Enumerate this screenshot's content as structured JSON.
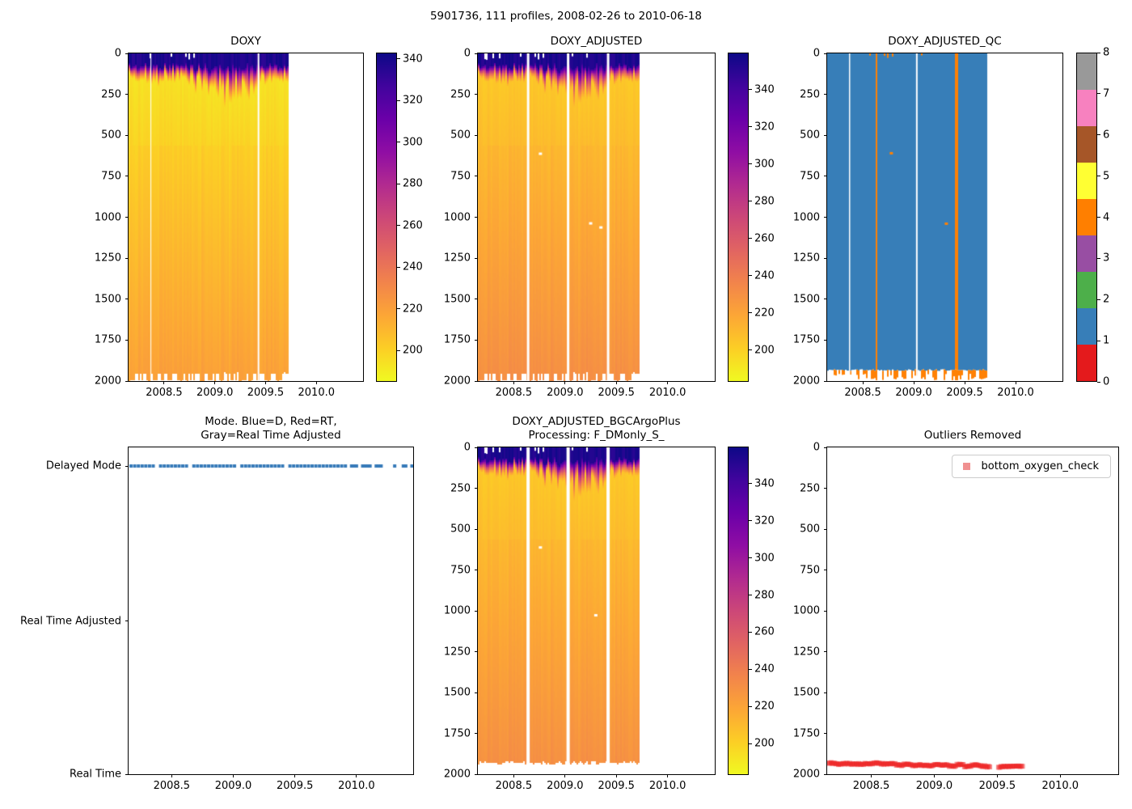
{
  "figure": {
    "title": "5901736, 111 profiles, 2008-02-26 to 2010-06-18"
  },
  "colors": {
    "plasma": [
      "#0d0887",
      "#41049d",
      "#6a00a8",
      "#8f0da4",
      "#b12a90",
      "#cc4778",
      "#e16462",
      "#f2844b",
      "#fca636",
      "#fcce25",
      "#f0f921"
    ],
    "set1": [
      "#e41a1c",
      "#377eb8",
      "#4daf4a",
      "#984ea3",
      "#ff7f00",
      "#ffff33",
      "#a65628",
      "#f781bf",
      "#999999"
    ],
    "qc_blue": "#377eb8",
    "qc_orange": "#ff8104",
    "mode_dot": "#3579b8",
    "outlier": "#ee1c1c",
    "legend_marker": "#f09090",
    "white": "#ffffff"
  },
  "chart_data": [
    {
      "id": "doxy",
      "type": "heatmap",
      "title": "DOXY",
      "x_domain": [
        2008.15,
        2010.46
      ],
      "x_tick_vals": [
        2008.5,
        2009.0,
        2009.5,
        2010.0
      ],
      "x_tick_labels": [
        "2008.5",
        "2009.0",
        "2009.5",
        "2010.0"
      ],
      "y_domain": [
        0,
        2000
      ],
      "y_tick_vals": [
        0,
        250,
        500,
        750,
        1000,
        1250,
        1500,
        1750,
        2000
      ],
      "y_tick_labels": [
        "0",
        "250",
        "500",
        "750",
        "1000",
        "1250",
        "1500",
        "1750",
        "2000"
      ],
      "data_x_end": 2009.72,
      "value_scale": 1.0,
      "streak_region": [
        2008.78,
        2009.42
      ],
      "notch_region": [
        2008.35,
        2009.05
      ],
      "gaps": [
        {
          "x": 2008.37,
          "w": 1
        },
        {
          "x": 2009.43,
          "w": 2
        }
      ],
      "specks": [],
      "bottom": "comb",
      "colorbar": {
        "vmin": 185,
        "vmax": 343,
        "tick_vals": [
          340,
          320,
          300,
          280,
          260,
          240,
          220,
          200
        ],
        "tick_labels": [
          "340",
          "320",
          "300",
          "280",
          "260",
          "240",
          "220",
          "200"
        ]
      }
    },
    {
      "id": "doxy_adjusted",
      "type": "heatmap",
      "title": "DOXY_ADJUSTED",
      "x_domain": [
        2008.15,
        2010.46
      ],
      "x_tick_vals": [
        2008.5,
        2009.0,
        2009.5,
        2010.0
      ],
      "x_tick_labels": [
        "2008.5",
        "2009.0",
        "2009.5",
        "2010.0"
      ],
      "y_domain": [
        0,
        2000
      ],
      "y_tick_vals": [
        0,
        250,
        500,
        750,
        1000,
        1250,
        1500,
        1750,
        2000
      ],
      "y_tick_labels": [
        "0",
        "250",
        "500",
        "750",
        "1000",
        "1250",
        "1500",
        "1750",
        "2000"
      ],
      "data_x_end": 2009.72,
      "value_scale": 1.05,
      "streak_region": [
        2008.78,
        2009.42
      ],
      "notch_region": [
        2008.2,
        2009.3
      ],
      "gaps": [
        {
          "x": 2008.64,
          "w": 3
        },
        {
          "x": 2009.03,
          "w": 3
        },
        {
          "x": 2009.42,
          "w": 3
        }
      ],
      "specks": [
        [
          2008.76,
          615
        ],
        [
          2009.25,
          1040
        ],
        [
          2009.35,
          1065
        ]
      ],
      "bottom": "comb",
      "colorbar": {
        "vmin": 183,
        "vmax": 360,
        "tick_vals": [
          340,
          320,
          300,
          280,
          260,
          240,
          220,
          200
        ],
        "tick_labels": [
          "340",
          "320",
          "300",
          "280",
          "260",
          "240",
          "220",
          "200"
        ]
      }
    },
    {
      "id": "doxy_adjusted_qc",
      "type": "qc",
      "title": "DOXY_ADJUSTED_QC",
      "x_domain": [
        2008.15,
        2010.46
      ],
      "x_tick_vals": [
        2008.5,
        2009.0,
        2009.5,
        2010.0
      ],
      "x_tick_labels": [
        "2008.5",
        "2009.0",
        "2009.5",
        "2010.0"
      ],
      "y_domain": [
        0,
        2000
      ],
      "y_tick_vals": [
        0,
        250,
        500,
        750,
        1000,
        1250,
        1500,
        1750,
        2000
      ],
      "y_tick_labels": [
        "0",
        "250",
        "500",
        "750",
        "1000",
        "1250",
        "1500",
        "1750",
        "2000"
      ],
      "data_x_end": 2009.72,
      "base_qc_flag": 1,
      "flagged_qc_flag": 4,
      "orange_cols": [
        2008.63,
        2009.41
      ],
      "notch_region": [
        2008.35,
        2009.2
      ],
      "gaps": [
        {
          "x": 2008.37,
          "w": 1.5
        },
        {
          "x": 2009.03,
          "w": 2
        }
      ],
      "specks": [
        [
          2008.78,
          612
        ],
        [
          2009.32,
          1042
        ]
      ],
      "bottom": "comb-orange",
      "colorbar": {
        "discrete": true,
        "vmin": 0,
        "vmax": 8,
        "tick_vals": [
          8,
          7,
          6,
          5,
          4,
          3,
          2,
          1,
          0
        ],
        "tick_labels": [
          "8",
          "7",
          "6",
          "5",
          "4",
          "3",
          "2",
          "1",
          "0"
        ]
      }
    },
    {
      "id": "mode",
      "type": "mode",
      "title": "Mode. Blue=D, Red=RT,",
      "title2": "Gray=Real Time Adjusted",
      "x_domain": [
        2008.15,
        2010.46
      ],
      "x_tick_vals": [
        2008.5,
        2009.0,
        2009.5,
        2010.0
      ],
      "x_tick_labels": [
        "2008.5",
        "2009.0",
        "2009.5",
        "2010.0"
      ],
      "categories": [
        {
          "label": "Delayed Mode",
          "pos": 0.057
        },
        {
          "label": "Real Time Adjusted",
          "pos": 0.532
        },
        {
          "label": "Real Time",
          "pos": 1.0
        }
      ],
      "series_category": "Delayed Mode",
      "dense": {
        "start": 2008.17,
        "end": 2009.93,
        "step": 0.03
      },
      "sparse": [
        2009.96,
        2009.98,
        2010.0,
        2010.05,
        2010.07,
        2010.09,
        2010.11,
        2010.16,
        2010.18,
        2010.2,
        2010.31,
        2010.38,
        2010.4,
        2010.45
      ],
      "skip_gaps": [
        2008.37,
        2008.64,
        2009.03,
        2009.42
      ]
    },
    {
      "id": "bgc",
      "type": "heatmap",
      "title": "DOXY_ADJUSTED_BGCArgoPlus",
      "title2": "Processing: F_DMonly_S_",
      "x_domain": [
        2008.15,
        2010.46
      ],
      "x_tick_vals": [
        2008.5,
        2009.0,
        2009.5,
        2010.0
      ],
      "x_tick_labels": [
        "2008.5",
        "2009.0",
        "2009.5",
        "2010.0"
      ],
      "y_domain": [
        0,
        2000
      ],
      "y_tick_vals": [
        0,
        250,
        500,
        750,
        1000,
        1250,
        1500,
        1750,
        2000
      ],
      "y_tick_labels": [
        "0",
        "250",
        "500",
        "750",
        "1000",
        "1250",
        "1500",
        "1750",
        "2000"
      ],
      "data_x_end": 2009.72,
      "value_scale": 1.05,
      "streak_region": [
        2008.78,
        2009.42
      ],
      "notch_region": [
        2008.2,
        2009.3
      ],
      "gaps": [
        {
          "x": 2008.64,
          "w": 4
        },
        {
          "x": 2009.03,
          "w": 4
        },
        {
          "x": 2009.42,
          "w": 4
        }
      ],
      "specks": [
        [
          2008.76,
          615
        ],
        [
          2009.3,
          1030
        ]
      ],
      "bottom": "cut",
      "colorbar": {
        "vmin": 183,
        "vmax": 360,
        "tick_vals": [
          340,
          320,
          300,
          280,
          260,
          240,
          220,
          200
        ],
        "tick_labels": [
          "340",
          "320",
          "300",
          "280",
          "260",
          "240",
          "220",
          "200"
        ]
      }
    },
    {
      "id": "outliers",
      "type": "outliers",
      "title": "Outliers Removed",
      "x_domain": [
        2008.15,
        2010.46
      ],
      "x_tick_vals": [
        2008.5,
        2009.0,
        2009.5,
        2010.0
      ],
      "x_tick_labels": [
        "2008.5",
        "2009.0",
        "2009.5",
        "2010.0"
      ],
      "y_domain": [
        0,
        2000
      ],
      "y_tick_vals": [
        0,
        250,
        500,
        750,
        1000,
        1250,
        1500,
        1750,
        2000
      ],
      "y_tick_labels": [
        "0",
        "250",
        "500",
        "750",
        "1000",
        "1250",
        "1500",
        "1750",
        "2000"
      ],
      "legend": {
        "label": "bottom_oxygen_check"
      },
      "band": {
        "start": 2008.16,
        "end": 2009.7,
        "step": 0.01,
        "depth_start": 1932,
        "depth_end": 1954,
        "gap": [
          2009.44,
          2009.5
        ]
      }
    }
  ]
}
